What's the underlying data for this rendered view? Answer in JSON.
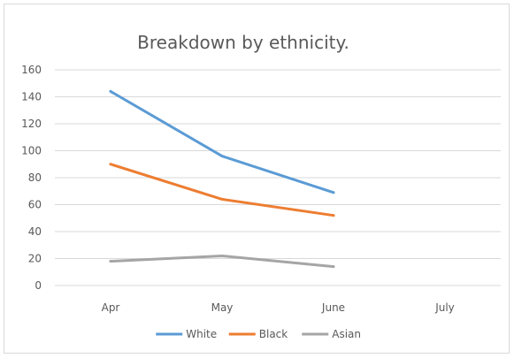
{
  "chart_data": {
    "type": "line",
    "title": "Breakdown by ethnicity.",
    "xlabel": "",
    "ylabel": "",
    "categories": [
      "Apr",
      "May",
      "June",
      "July"
    ],
    "ylim": [
      0,
      160
    ],
    "yticks": [
      0,
      20,
      40,
      60,
      80,
      100,
      120,
      140,
      160
    ],
    "grid": true,
    "legend_position": "bottom",
    "series": [
      {
        "name": "White",
        "color": "#5b9bd5",
        "values": [
          144,
          96,
          69,
          null
        ]
      },
      {
        "name": "Black",
        "color": "#ed7d31",
        "values": [
          90,
          64,
          52,
          null
        ]
      },
      {
        "name": "Asian",
        "color": "#a5a5a5",
        "values": [
          18,
          22,
          14,
          null
        ]
      }
    ]
  }
}
